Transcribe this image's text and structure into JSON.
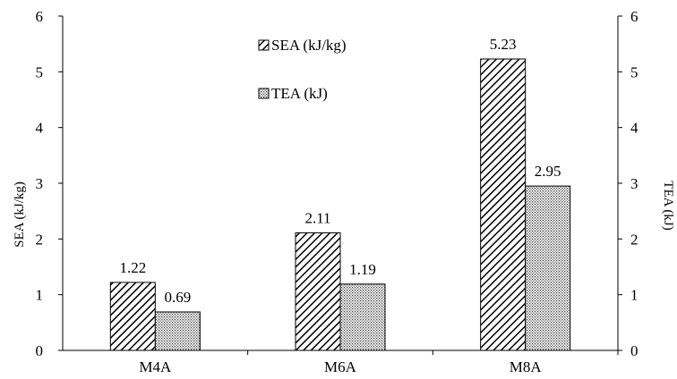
{
  "chart_data": {
    "type": "bar",
    "categories": [
      "M4A",
      "M6A",
      "M8A"
    ],
    "series": [
      {
        "name": "SEA (kJ/kg)",
        "axis": "left",
        "pattern": "diagonal-hatch",
        "values": [
          1.22,
          2.11,
          5.23
        ],
        "labels": [
          "1.22",
          "2.11",
          "5.23"
        ]
      },
      {
        "name": "TEA (kJ)",
        "axis": "right",
        "pattern": "dotted",
        "values": [
          0.69,
          1.19,
          2.95
        ],
        "labels": [
          "0.69",
          "1.19",
          "2.95"
        ]
      }
    ],
    "ylabel": "SEA (kJ/kg)",
    "y2label": "TEA (kJ)",
    "ylim": [
      0,
      6
    ],
    "y2lim": [
      0,
      6
    ],
    "yticks": [
      "0",
      "1",
      "2",
      "3",
      "4",
      "5",
      "6"
    ],
    "y2ticks": [
      "0",
      "1",
      "2",
      "3",
      "4",
      "5",
      "6"
    ],
    "grid": false,
    "legend": "top-center"
  }
}
